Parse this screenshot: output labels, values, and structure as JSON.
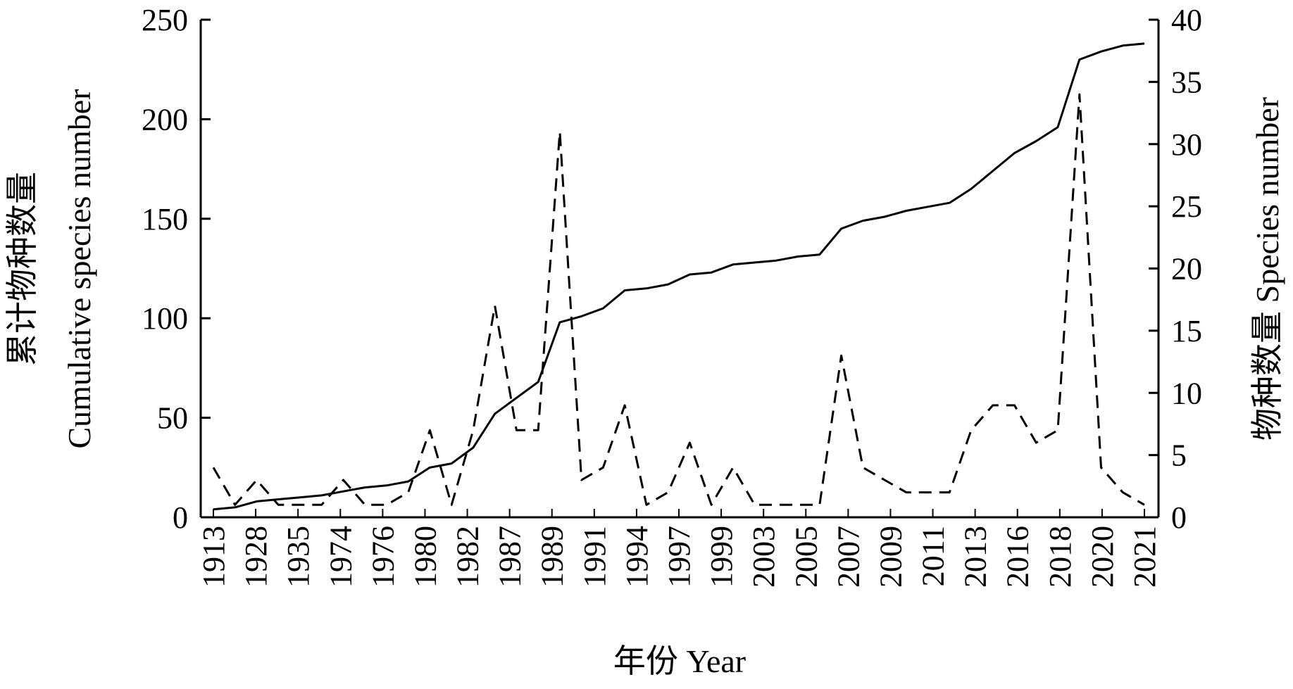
{
  "chart_data": {
    "type": "line",
    "x_tick_labels": [
      "1913",
      "1928",
      "1935",
      "1974",
      "1976",
      "1980",
      "1982",
      "1987",
      "1989",
      "1991",
      "1994",
      "1997",
      "1999",
      "2003",
      "2005",
      "2007",
      "2009",
      "2011",
      "2013",
      "2016",
      "2018",
      "2020",
      "2021"
    ],
    "xlabel": "年份 Year",
    "ylabel_left": [
      "累计物种数量",
      "Cumulative species number"
    ],
    "ylabel_right": "物种数量 Species number",
    "ylim_left": [
      0,
      250
    ],
    "ylim_right": [
      0,
      40
    ],
    "y_ticks_left": [
      0,
      50,
      100,
      150,
      200,
      250
    ],
    "y_ticks_right": [
      0,
      5,
      10,
      15,
      20,
      25,
      30,
      35,
      40
    ],
    "grid": false,
    "series": [
      {
        "axis": "left",
        "style": "solid",
        "values": [
          4,
          5,
          8,
          9,
          10,
          11,
          13,
          15,
          16,
          18,
          25,
          27,
          35,
          52,
          60,
          68,
          98,
          101,
          105,
          114,
          115,
          117,
          122,
          123,
          127,
          128,
          129,
          131,
          132,
          145,
          149,
          151,
          154,
          156,
          158,
          165,
          174,
          183,
          189,
          196,
          230,
          234,
          237,
          238
        ]
      },
      {
        "axis": "right",
        "style": "dashed",
        "values": [
          4,
          1,
          3,
          1,
          1,
          1,
          3,
          1,
          1,
          2,
          7,
          1,
          7,
          17,
          7,
          7,
          31,
          3,
          4,
          9,
          1,
          2,
          6,
          1,
          4,
          1,
          1,
          1,
          1,
          13,
          4,
          3,
          2,
          2,
          2,
          7,
          9,
          9,
          6,
          7,
          34,
          4,
          2,
          1
        ]
      }
    ]
  }
}
